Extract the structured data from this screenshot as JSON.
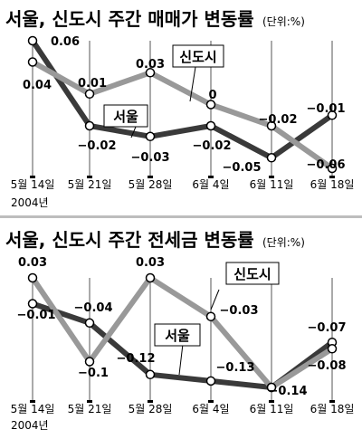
{
  "colors": {
    "seoul": "#3a3a3a",
    "newtown": "#999999",
    "axis": "#555555",
    "tick_box": "#eeeeee"
  },
  "chart_data": [
    {
      "type": "line",
      "title": "서울, 신도시 주간 매매가 변동률",
      "unit_note": "(단위:%)",
      "categories": [
        "5월 14일",
        "5월 21일",
        "5월 28일",
        "6월 4일",
        "6월 11일",
        "6월 18일"
      ],
      "year_note": "2004년",
      "ylim": [
        -0.06,
        0.06
      ],
      "grid": false,
      "series": [
        {
          "name": "서울",
          "values": [
            0.06,
            -0.02,
            -0.03,
            -0.02,
            -0.05,
            -0.01
          ]
        },
        {
          "name": "신도시",
          "values": [
            0.04,
            0.01,
            0.03,
            0,
            -0.02,
            -0.06
          ]
        }
      ],
      "value_labels": {
        "서울": [
          "0.06",
          "−0.02",
          "−0.03",
          "−0.02",
          "−0.05",
          "−0.01"
        ],
        "신도시": [
          "0.04",
          "0.01",
          "0.03",
          "0",
          "−0.02",
          "−0.06"
        ]
      }
    },
    {
      "type": "line",
      "title": "서울, 신도시 주간 전세금 변동률",
      "unit_note": "(단위:%)",
      "categories": [
        "5월 14일",
        "5월 21일",
        "5월 28일",
        "6월 4일",
        "6월 11일",
        "6월 18일"
      ],
      "year_note": "2004년",
      "ylim": [
        -0.14,
        0.03
      ],
      "grid": false,
      "series": [
        {
          "name": "서울",
          "values": [
            -0.01,
            -0.04,
            -0.12,
            -0.13,
            -0.14,
            -0.07
          ]
        },
        {
          "name": "신도시",
          "values": [
            0.03,
            -0.1,
            0.03,
            -0.03,
            -0.14,
            -0.08
          ]
        }
      ],
      "value_labels": {
        "서울": [
          "−0.01",
          "−0.04",
          "−0.12",
          "−0.13",
          "−0.14",
          "−0.07"
        ],
        "신도시": [
          "0.03",
          "−0.1",
          "0.03",
          "−0.03",
          "",
          "−0.08"
        ]
      }
    }
  ]
}
